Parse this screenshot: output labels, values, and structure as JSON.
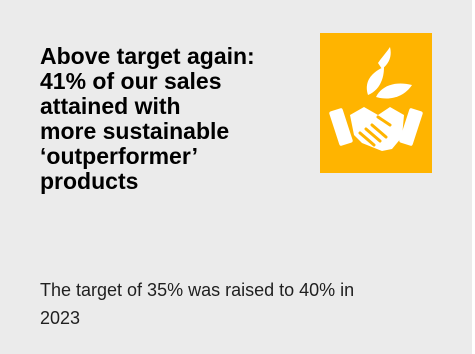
{
  "card": {
    "headline_lines": [
      "Above target again:",
      "41% of our sales",
      "attained with",
      "more sustainable",
      "‘outperformer’",
      "products"
    ],
    "body_lines": [
      "The target of 35% was raised to 40% in",
      "2023"
    ],
    "icon": "handshake-leaves-icon",
    "colors": {
      "background": "#ebebeb",
      "icon_tile": "#ffb400",
      "icon_glyph": "#ffffff",
      "headline": "#000000"
    }
  }
}
